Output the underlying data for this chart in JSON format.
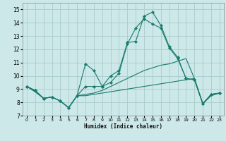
{
  "xlabel": "Humidex (Indice chaleur)",
  "background_color": "#cce8e8",
  "grid_color": "#aacccc",
  "line_color": "#1a7a6e",
  "xlim": [
    -0.5,
    23.5
  ],
  "ylim": [
    7,
    15.5
  ],
  "xticks": [
    0,
    1,
    2,
    3,
    4,
    5,
    6,
    7,
    8,
    9,
    10,
    11,
    12,
    13,
    14,
    15,
    16,
    17,
    18,
    19,
    20,
    21,
    22,
    23
  ],
  "yticks": [
    7,
    8,
    9,
    10,
    11,
    12,
    13,
    14,
    15
  ],
  "lines": [
    {
      "x": [
        0,
        1,
        2,
        3,
        4,
        5,
        6,
        7,
        8,
        9,
        10,
        11,
        12,
        13,
        14,
        15,
        16,
        17,
        18,
        19,
        20,
        21,
        22,
        23
      ],
      "y": [
        9.2,
        8.9,
        8.3,
        8.4,
        8.1,
        7.6,
        8.5,
        9.2,
        9.2,
        9.2,
        10.0,
        10.4,
        12.5,
        12.6,
        14.5,
        14.8,
        13.8,
        12.2,
        11.4,
        9.8,
        9.7,
        7.9,
        8.6,
        8.7
      ],
      "marker": true
    },
    {
      "x": [
        0,
        1,
        2,
        3,
        4,
        5,
        6,
        7,
        8,
        9,
        10,
        11,
        12,
        13,
        14,
        15,
        16,
        17,
        18,
        19,
        20,
        21,
        22,
        23
      ],
      "y": [
        9.2,
        8.9,
        8.3,
        8.4,
        8.1,
        7.6,
        8.5,
        10.9,
        10.4,
        9.2,
        9.5,
        10.2,
        12.4,
        13.6,
        14.3,
        13.9,
        13.6,
        12.1,
        11.3,
        9.8,
        9.7,
        7.9,
        8.6,
        8.7
      ],
      "marker": true
    },
    {
      "x": [
        0,
        1,
        2,
        3,
        4,
        5,
        6,
        7,
        8,
        9,
        10,
        11,
        12,
        13,
        14,
        15,
        16,
        17,
        18,
        19,
        20,
        21,
        22,
        23
      ],
      "y": [
        9.2,
        8.8,
        8.3,
        8.4,
        8.1,
        7.6,
        8.5,
        8.6,
        8.7,
        8.9,
        9.2,
        9.5,
        9.8,
        10.1,
        10.4,
        10.6,
        10.8,
        10.9,
        11.1,
        11.3,
        9.8,
        7.9,
        8.6,
        8.7
      ],
      "marker": false
    },
    {
      "x": [
        0,
        1,
        2,
        3,
        4,
        5,
        6,
        7,
        8,
        9,
        10,
        11,
        12,
        13,
        14,
        15,
        16,
        17,
        18,
        19,
        20,
        21,
        22,
        23
      ],
      "y": [
        9.2,
        8.8,
        8.3,
        8.4,
        8.1,
        7.6,
        8.5,
        8.5,
        8.6,
        8.7,
        8.8,
        8.9,
        9.0,
        9.1,
        9.2,
        9.3,
        9.4,
        9.5,
        9.6,
        9.7,
        9.8,
        7.9,
        8.5,
        8.7
      ],
      "marker": false
    }
  ]
}
